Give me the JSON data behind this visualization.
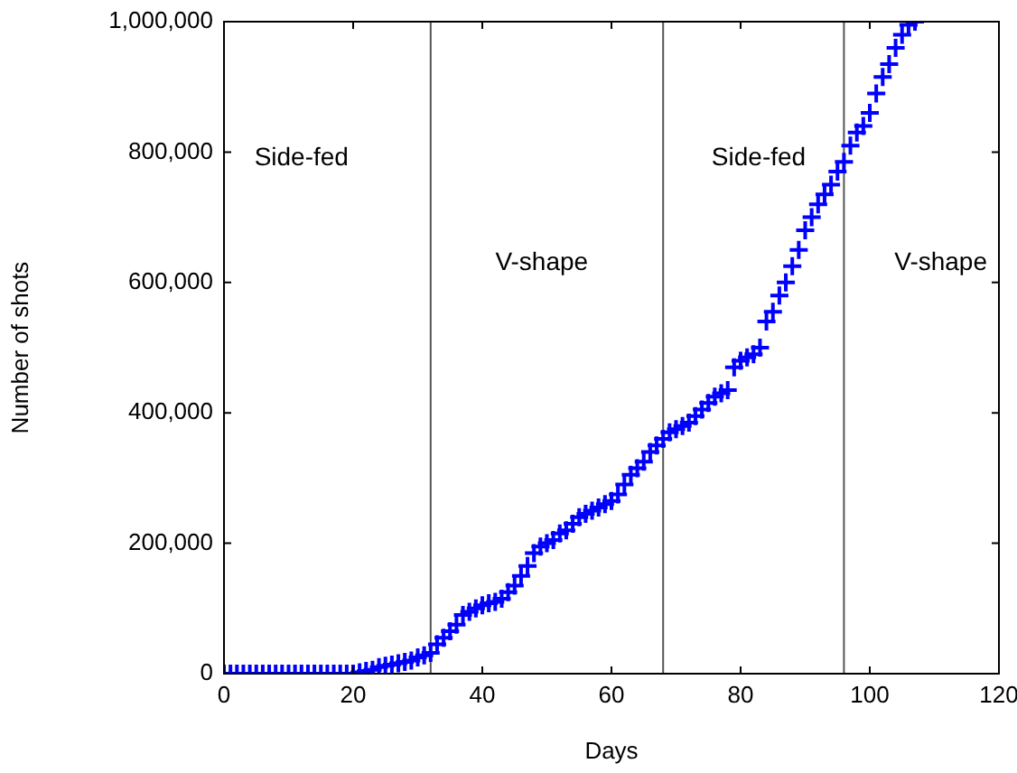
{
  "chart_data": {
    "type": "scatter",
    "xlabel": "Days",
    "ylabel": "Number of shots",
    "x": [
      0,
      1,
      2,
      3,
      4,
      5,
      6,
      7,
      8,
      9,
      10,
      11,
      12,
      13,
      14,
      15,
      16,
      17,
      18,
      19,
      20,
      21,
      22,
      23,
      24,
      25,
      26,
      27,
      28,
      29,
      30,
      31,
      32,
      33,
      34,
      35,
      36,
      37,
      38,
      39,
      40,
      41,
      42,
      43,
      44,
      45,
      46,
      47,
      48,
      49,
      50,
      51,
      52,
      53,
      54,
      55,
      56,
      57,
      58,
      59,
      60,
      61,
      62,
      63,
      64,
      65,
      66,
      67,
      68,
      69,
      70,
      71,
      72,
      73,
      74,
      75,
      76,
      77,
      78,
      79,
      80,
      81,
      82,
      83,
      84,
      85,
      86,
      87,
      88,
      89,
      90,
      91,
      92,
      93,
      94,
      95,
      96,
      97,
      98,
      99,
      100,
      101,
      102,
      103,
      104,
      105,
      106,
      107
    ],
    "series": [
      {
        "color": "#0000ff",
        "values": [
          0,
          0,
          0,
          0,
          0,
          0,
          0,
          0,
          0,
          0,
          0,
          0,
          0,
          0,
          0,
          0,
          0,
          0,
          0,
          0,
          0,
          2000,
          4000,
          6000,
          10000,
          12000,
          14000,
          16000,
          18000,
          20000,
          25000,
          28000,
          32000,
          45000,
          55000,
          65000,
          75000,
          90000,
          95000,
          100000,
          105000,
          108000,
          110000,
          115000,
          125000,
          135000,
          150000,
          165000,
          185000,
          195000,
          200000,
          205000,
          215000,
          220000,
          230000,
          240000,
          245000,
          250000,
          255000,
          260000,
          265000,
          275000,
          290000,
          305000,
          315000,
          325000,
          340000,
          350000,
          360000,
          370000,
          375000,
          380000,
          385000,
          395000,
          405000,
          415000,
          425000,
          430000,
          435000,
          470000,
          480000,
          485000,
          490000,
          500000,
          540000,
          555000,
          580000,
          600000,
          625000,
          650000,
          680000,
          700000,
          720000,
          735000,
          750000,
          770000,
          785000,
          810000,
          830000,
          840000,
          860000,
          890000,
          915000,
          935000,
          960000,
          980000,
          995000,
          1000000
        ]
      }
    ],
    "xlim": [
      0,
      120
    ],
    "xticks": [
      0,
      20,
      40,
      60,
      80,
      100,
      120
    ],
    "ylim": [
      0,
      1000000
    ],
    "yticks": [
      {
        "value": 0,
        "label": "0"
      },
      {
        "value": 200000,
        "label": "200,000"
      },
      {
        "value": 400000,
        "label": "400,000"
      },
      {
        "value": 600000,
        "label": "600,000"
      },
      {
        "value": 800000,
        "label": "800,000"
      },
      {
        "value": 1000000,
        "label": "1,000,000"
      }
    ],
    "ref_lines": [
      {
        "axis": "x",
        "value": 32,
        "color": "#555555"
      },
      {
        "axis": "x",
        "value": 68,
        "color": "#555555"
      },
      {
        "axis": "x",
        "value": 96,
        "color": "#555555"
      }
    ],
    "annotations": [
      "Side-fed",
      "V-shape",
      "Side-fed",
      "V-shape"
    ],
    "marker": "cross",
    "grid": false,
    "legend": false
  }
}
